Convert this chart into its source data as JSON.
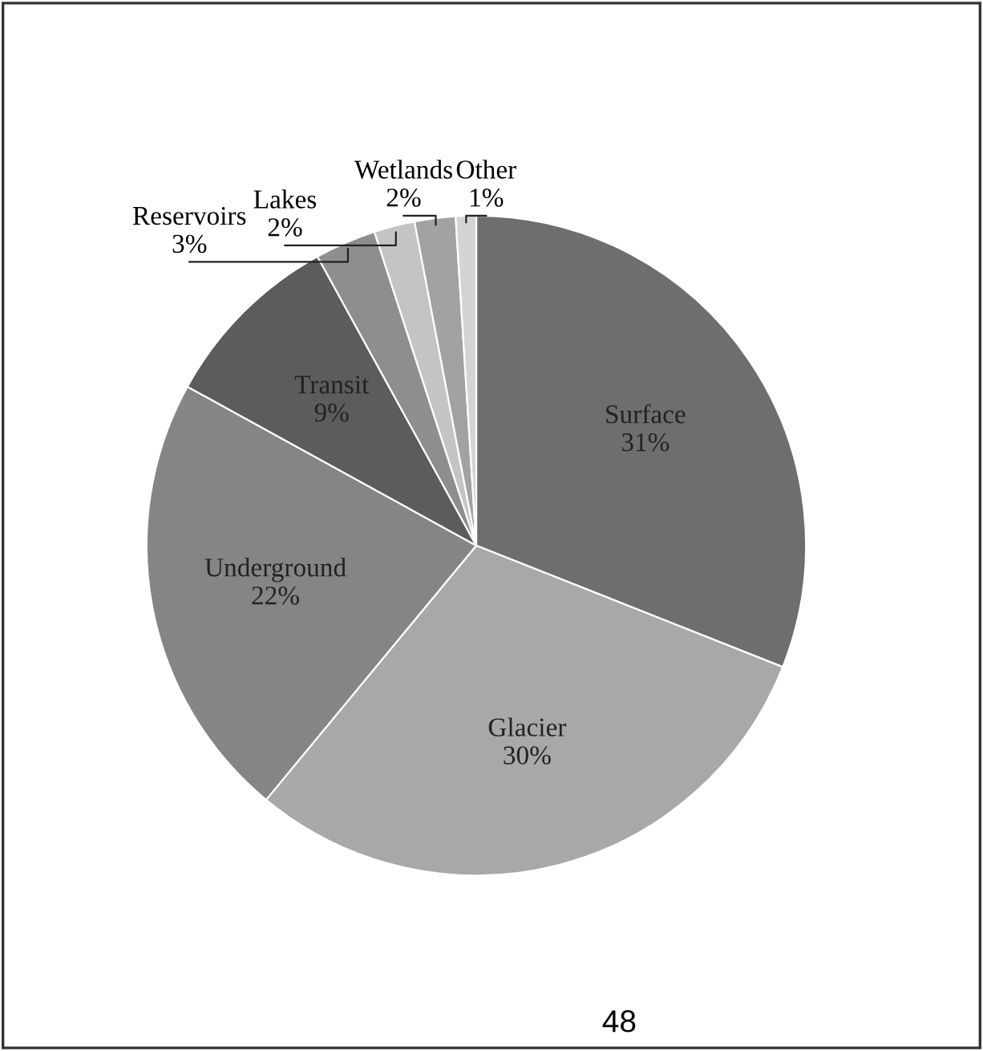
{
  "chart_data": {
    "type": "pie",
    "categories": [
      "Surface",
      "Glacier",
      "Underground",
      "Transit",
      "Reservoirs",
      "Lakes",
      "Wetlands",
      "Other"
    ],
    "values": [
      31,
      30,
      22,
      9,
      3,
      2,
      2,
      1
    ],
    "value_labels": [
      "31%",
      "30%",
      "22%",
      "9%",
      "3%",
      "2%",
      "2%",
      "1%"
    ],
    "colors": [
      "#6e6e6e",
      "#a8a8a8",
      "#858585",
      "#5c5c5c",
      "#8e8e8e",
      "#c4c4c4",
      "#a2a2a2",
      "#d4d4d4"
    ],
    "annotations": [
      "48"
    ]
  }
}
